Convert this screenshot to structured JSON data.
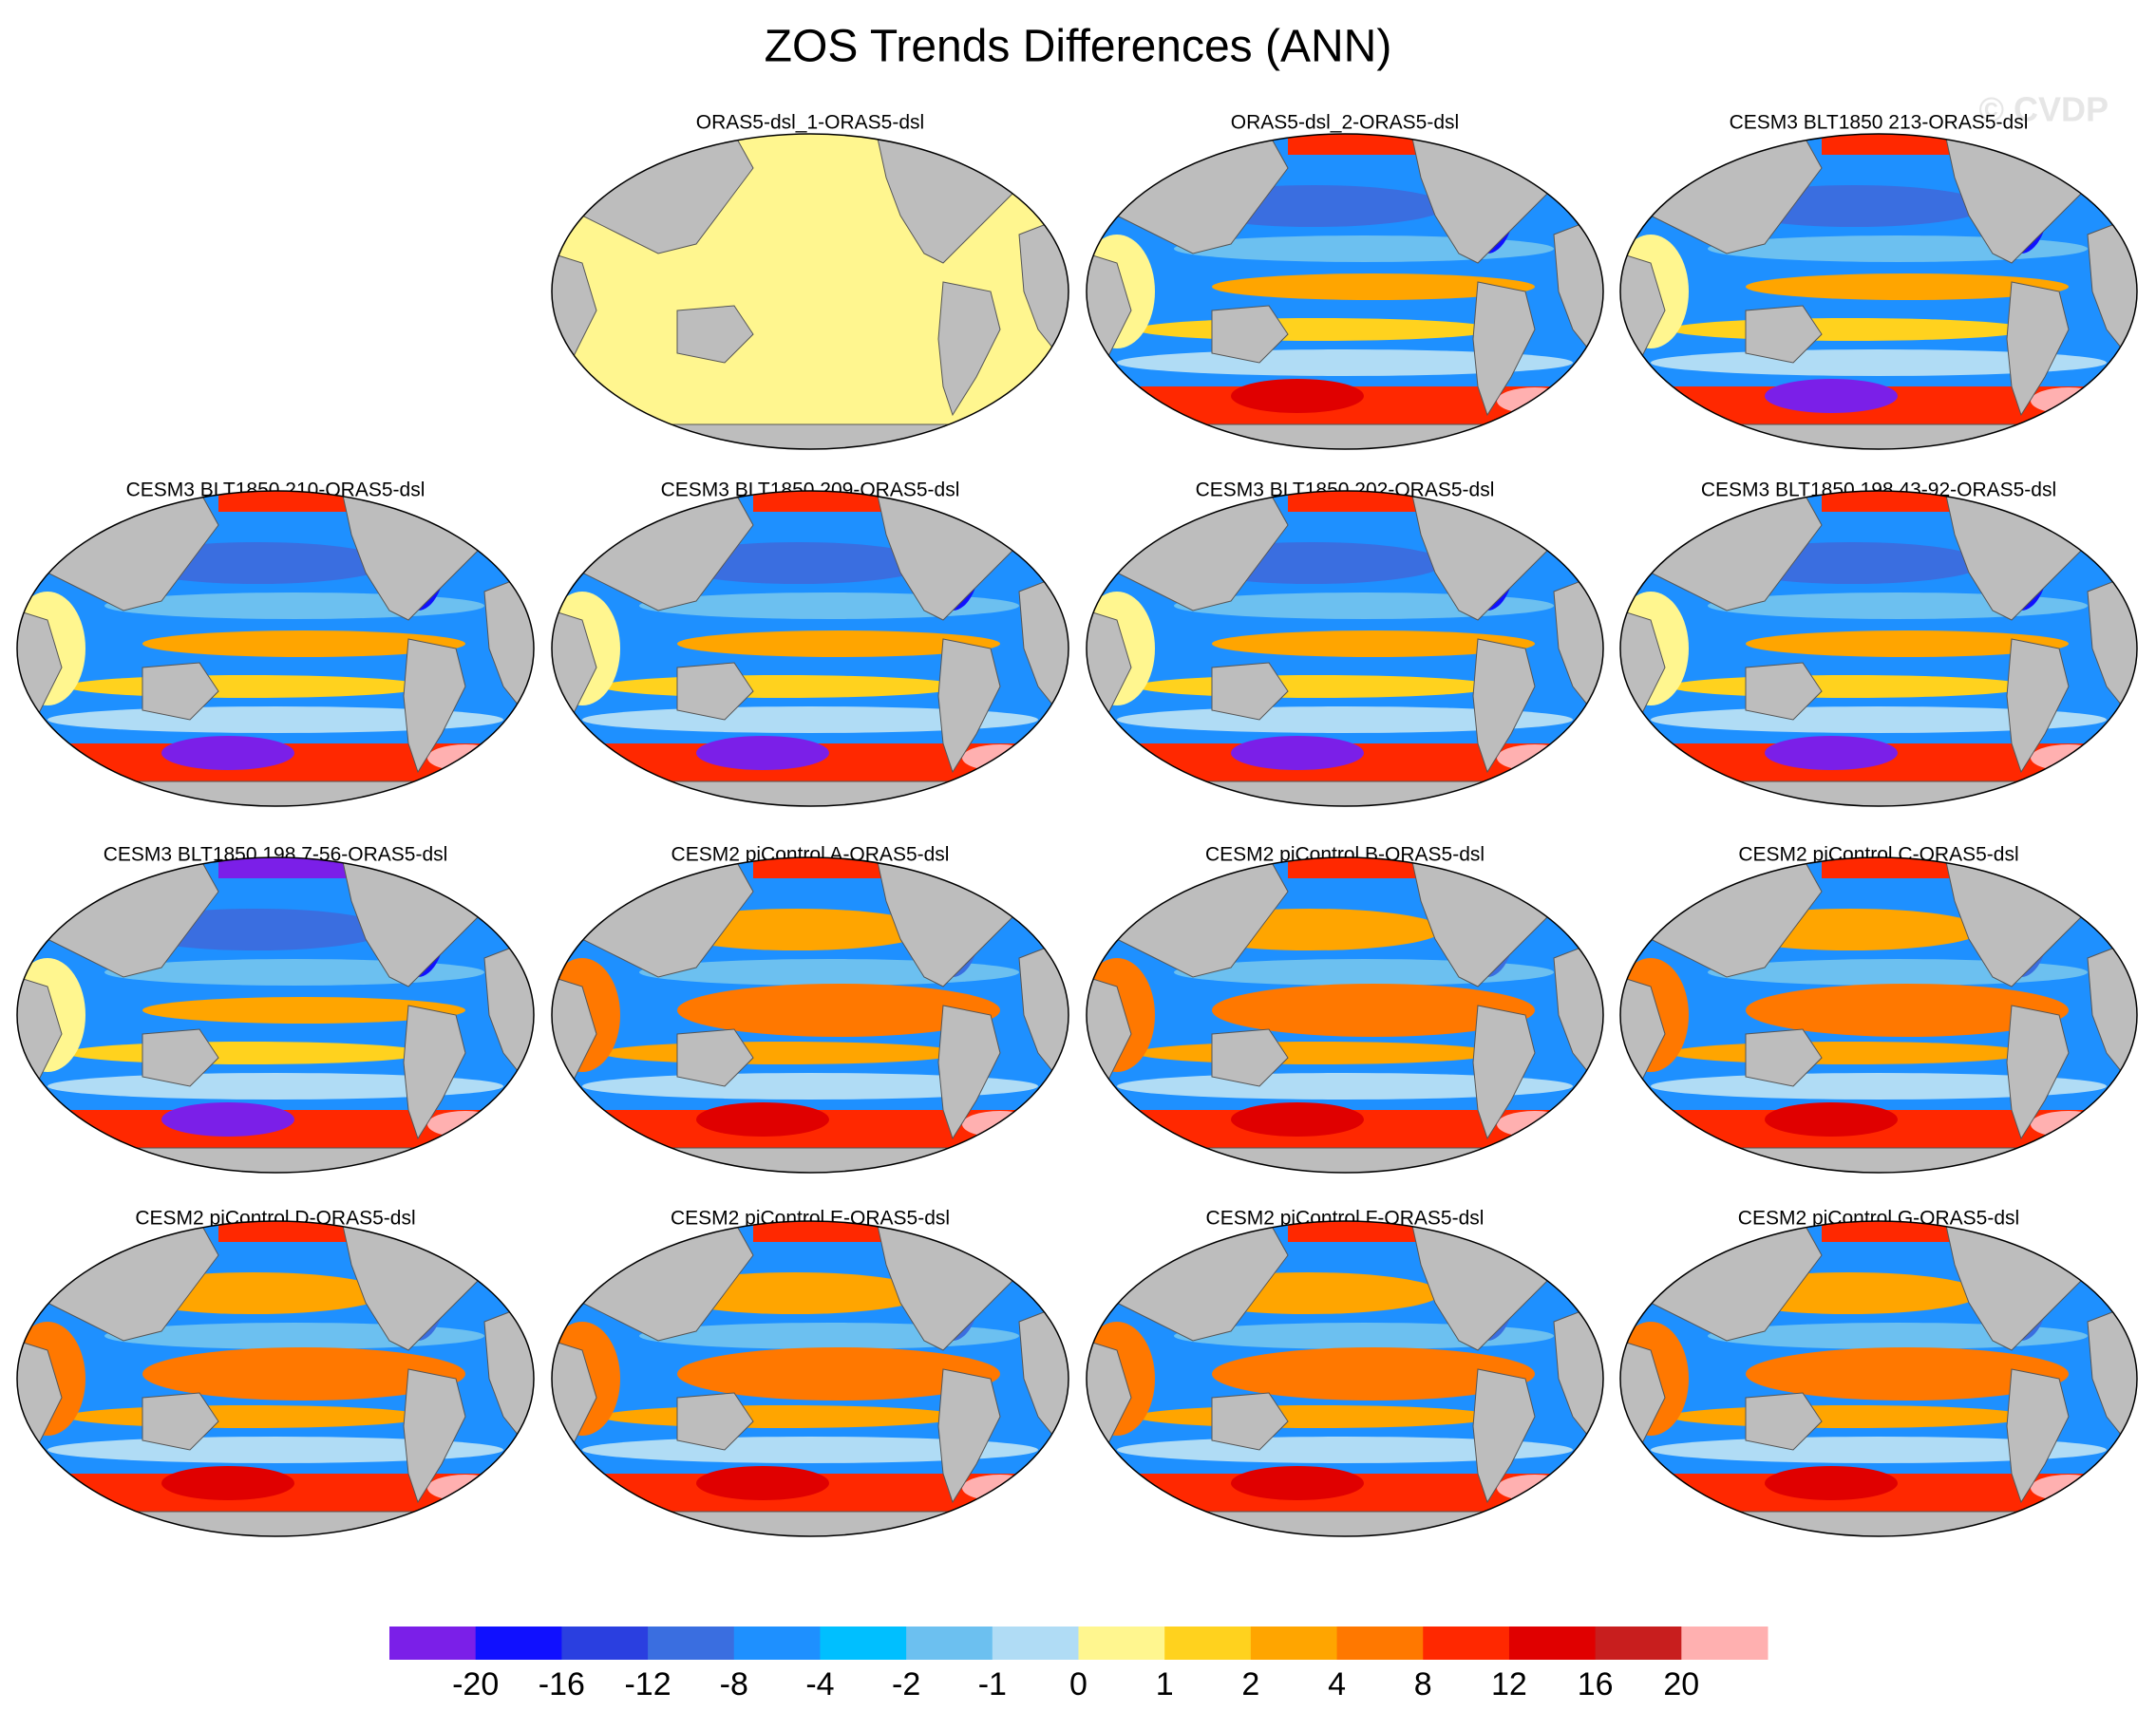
{
  "title": "ZOS Trends Differences (ANN)",
  "watermark": "© CVDP",
  "panels": [
    {
      "title": "ORAS5-dsl_1-ORAS5-dsl"
    },
    {
      "title": "ORAS5-dsl_2-ORAS5-dsl"
    },
    {
      "title": "CESM3 BLT1850 213-ORAS5-dsl"
    },
    {
      "title": "CESM3 BLT1850 210-ORAS5-dsl"
    },
    {
      "title": "CESM3 BLT1850 209-ORAS5-dsl"
    },
    {
      "title": "CESM3 BLT1850 202-ORAS5-dsl"
    },
    {
      "title": "CESM3 BLT1850 198 43-92-ORAS5-dsl"
    },
    {
      "title": "CESM3 BLT1850 198 7-56-ORAS5-dsl"
    },
    {
      "title": "CESM2 piControl A-ORAS5-dsl"
    },
    {
      "title": "CESM2 piControl B-ORAS5-dsl"
    },
    {
      "title": "CESM2 piControl C-ORAS5-dsl"
    },
    {
      "title": "CESM2 piControl D-ORAS5-dsl"
    },
    {
      "title": "CESM2 piControl E-ORAS5-dsl"
    },
    {
      "title": "CESM2 piControl F-ORAS5-dsl"
    },
    {
      "title": "CESM2 piControl G-ORAS5-dsl"
    }
  ],
  "colorbar": {
    "colors": [
      "#7b1fe8",
      "#1010ff",
      "#2a3fe0",
      "#3a6ee0",
      "#1e90ff",
      "#00bfff",
      "#6cc0f0",
      "#b0dcf5",
      "#fff68f",
      "#ffd21e",
      "#ffa500",
      "#ff7800",
      "#ff2800",
      "#e00000",
      "#c81e1e",
      "#ffb0b0"
    ],
    "labels": [
      -20,
      -16,
      -12,
      -8,
      -4,
      -2,
      -1,
      0,
      1,
      2,
      4,
      8,
      12,
      16,
      20
    ]
  }
}
